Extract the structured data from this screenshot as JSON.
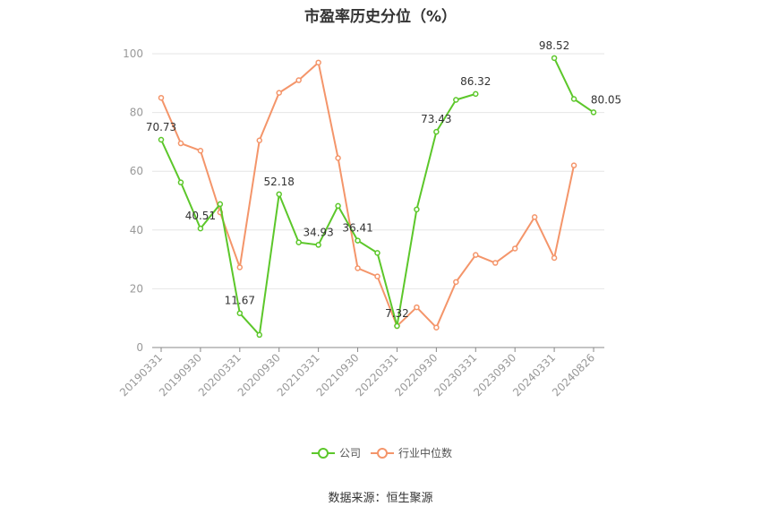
{
  "title": "市盈率历史分位（%）",
  "source": "数据来源：恒生聚源",
  "colors": {
    "company": "#5cc72a",
    "industry": "#f4956a"
  },
  "legend": {
    "company": "公司",
    "industry": "行业中位数"
  },
  "chart_data": {
    "type": "line",
    "title": "市盈率历史分位（%）",
    "ylim": [
      0,
      100
    ],
    "yticks": [
      0,
      20,
      40,
      60,
      80,
      100
    ],
    "x": [
      "20190331",
      "20190630",
      "20190930",
      "20191231",
      "20200331",
      "20200630",
      "20200930",
      "20201231",
      "20210331",
      "20210630",
      "20210930",
      "20211231",
      "20220331",
      "20220630",
      "20220930",
      "20221231",
      "20230331",
      "20230630",
      "20230930",
      "20231231",
      "20240331",
      "20240630",
      "20240826"
    ],
    "xtick_labels": [
      "20190331",
      "20190930",
      "20200331",
      "20200930",
      "20210331",
      "20210930",
      "20220331",
      "20220930",
      "20230331",
      "20230930",
      "20240331",
      "20240826"
    ],
    "series": [
      {
        "name": "公司",
        "values": [
          70.73,
          56.2,
          40.51,
          48.8,
          11.67,
          4.3,
          52.18,
          35.8,
          34.93,
          48.2,
          36.41,
          32.2,
          7.32,
          47.0,
          73.43,
          84.3,
          86.32,
          null,
          null,
          null,
          98.52,
          84.6,
          80.05
        ]
      },
      {
        "name": "行业中位数",
        "values": [
          85.0,
          69.5,
          67.0,
          46.0,
          27.3,
          70.5,
          86.7,
          91.0,
          97.0,
          64.5,
          27.0,
          24.2,
          7.3,
          13.7,
          6.8,
          22.3,
          31.5,
          28.8,
          33.7,
          44.4,
          30.5,
          62.0,
          null
        ]
      }
    ],
    "data_labels": [
      {
        "series": 0,
        "index": 0,
        "text": "70.73"
      },
      {
        "series": 0,
        "index": 2,
        "text": "40.51"
      },
      {
        "series": 0,
        "index": 4,
        "text": "11.67"
      },
      {
        "series": 0,
        "index": 6,
        "text": "52.18"
      },
      {
        "series": 0,
        "index": 8,
        "text": "34.93"
      },
      {
        "series": 0,
        "index": 10,
        "text": "36.41"
      },
      {
        "series": 0,
        "index": 12,
        "text": "7.32"
      },
      {
        "series": 0,
        "index": 14,
        "text": "73.43"
      },
      {
        "series": 0,
        "index": 16,
        "text": "86.32"
      },
      {
        "series": 0,
        "index": 20,
        "text": "98.52"
      },
      {
        "series": 0,
        "index": 22,
        "text": "80.05"
      }
    ],
    "grid": true,
    "legend_position": "bottom"
  }
}
